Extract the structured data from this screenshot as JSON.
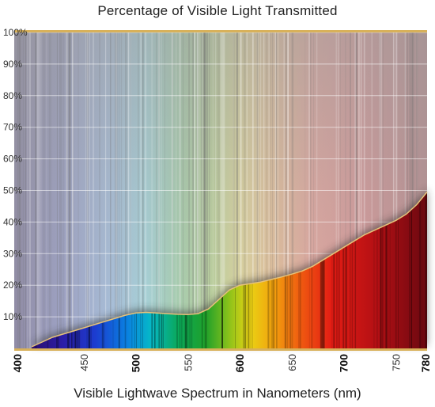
{
  "chart_data": {
    "type": "area",
    "title": "Percentage of Visible Light Transmitted",
    "xlabel": "Visible Lightwave Spectrum in Nanometers (nm)",
    "ylabel": "",
    "xlim": [
      400,
      780
    ],
    "ylim": [
      0,
      100
    ],
    "x_ticks": [
      {
        "value": 400,
        "label": "400",
        "major": true
      },
      {
        "value": 450,
        "label": "450",
        "major": false
      },
      {
        "value": 500,
        "label": "500",
        "major": true
      },
      {
        "value": 550,
        "label": "550",
        "major": false
      },
      {
        "value": 600,
        "label": "600",
        "major": true
      },
      {
        "value": 650,
        "label": "650",
        "major": false
      },
      {
        "value": 700,
        "label": "700",
        "major": true
      },
      {
        "value": 750,
        "label": "750",
        "major": false
      },
      {
        "value": 780,
        "label": "780",
        "major": true
      }
    ],
    "y_ticks": [
      {
        "value": 10,
        "label": "10%"
      },
      {
        "value": 20,
        "label": "20%"
      },
      {
        "value": 30,
        "label": "30%"
      },
      {
        "value": 40,
        "label": "40%"
      },
      {
        "value": 50,
        "label": "50%"
      },
      {
        "value": 60,
        "label": "60%"
      },
      {
        "value": 70,
        "label": "70%"
      },
      {
        "value": 80,
        "label": "80%"
      },
      {
        "value": 90,
        "label": "90%"
      },
      {
        "value": 100,
        "label": "100%"
      }
    ],
    "grid": true,
    "background": "visible spectrum rainbow",
    "colors": {
      "line": "#e6c27a",
      "axis": "#d8b15a",
      "grid": "#ffffff"
    },
    "series": [
      {
        "x": [
          400,
          410,
          420,
          430,
          440,
          450,
          460,
          470,
          480,
          490,
          500,
          510,
          520,
          530,
          540,
          550,
          560,
          570,
          580,
          590,
          600,
          610,
          620,
          630,
          640,
          650,
          660,
          670,
          680,
          690,
          700,
          710,
          720,
          730,
          740,
          750,
          760,
          770,
          780
        ],
        "y": [
          0.5,
          2,
          3.5,
          4.5,
          5.5,
          6.5,
          7.5,
          8.5,
          9.5,
          10.5,
          11.2,
          11.4,
          11.2,
          11,
          10.8,
          10.7,
          11,
          12.5,
          15.5,
          18.5,
          20,
          20.5,
          21,
          21.8,
          22.6,
          23.5,
          24.5,
          26,
          28,
          30,
          32,
          34,
          36,
          37.5,
          39,
          40.5,
          42.5,
          45.5,
          49.5
        ]
      }
    ]
  }
}
